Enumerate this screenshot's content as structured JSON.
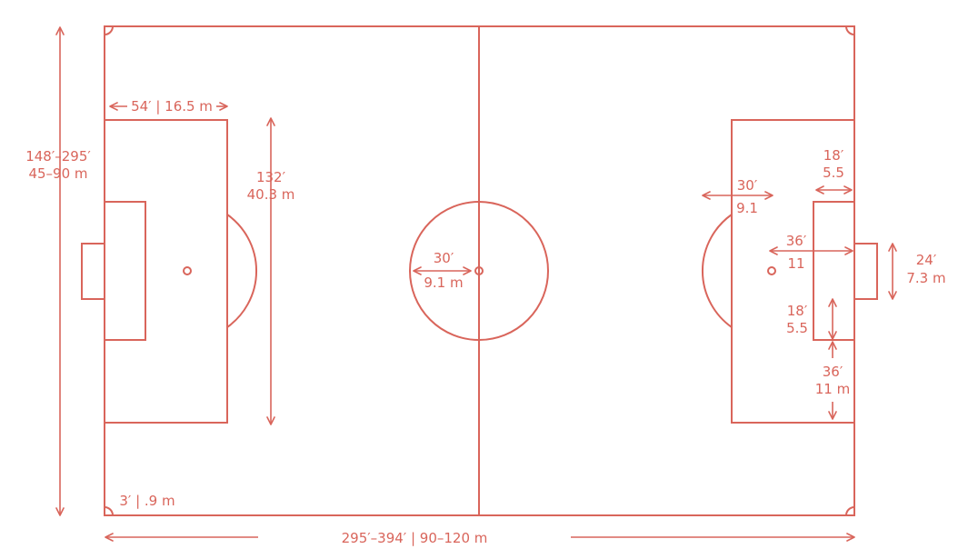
{
  "colors": {
    "line": "#d9655b",
    "background": "#ffffff"
  },
  "labels": {
    "field_width": [
      "148′–295′",
      "45–90 m"
    ],
    "field_length": "295′–394′ | 90–120 m",
    "penalty_depth": "54′ | 16.5 m",
    "penalty_width": [
      "132′",
      "40.3 m"
    ],
    "corner_arc": "3′ | .9 m",
    "center_circle": [
      "30′",
      "9.1 m"
    ],
    "penalty_arc": [
      "30′",
      "9.1"
    ],
    "goal_area_depth": [
      "18′",
      "5.5"
    ],
    "penalty_spot_distance": [
      "36′",
      "11"
    ],
    "goal_width": [
      "24′",
      "7.3 m"
    ],
    "goal_area_side": [
      "18′",
      "5.5"
    ],
    "goal_area_to_box": [
      "36′",
      "11 m"
    ]
  }
}
